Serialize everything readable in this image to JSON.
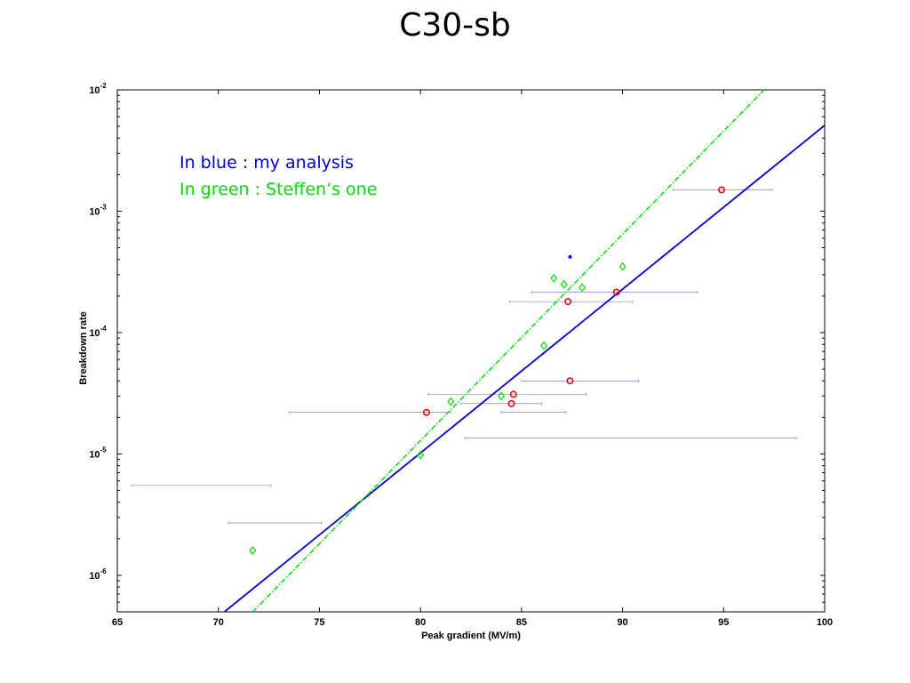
{
  "title": "C30-sb",
  "chart_data": {
    "type": "scatter",
    "xlabel": "Peak gradient (MV/m)",
    "ylabel": "Breakdown rate",
    "xlim": [
      65,
      100
    ],
    "ylim": [
      5e-07,
      0.01
    ],
    "yscale": "log",
    "x_ticks": [
      "65",
      "70",
      "75",
      "80",
      "85",
      "90",
      "95",
      "100"
    ],
    "x_tick_values": [
      65,
      70,
      75,
      80,
      85,
      90,
      95,
      100
    ],
    "y_ticks": [
      {
        "base": "10",
        "exp": "-6",
        "value": 1e-06
      },
      {
        "base": "10",
        "exp": "-5",
        "value": 1e-05
      },
      {
        "base": "10",
        "exp": "-4",
        "value": 0.0001
      },
      {
        "base": "10",
        "exp": "-3",
        "value": 0.001
      },
      {
        "base": "10",
        "exp": "-2",
        "value": 0.01
      }
    ],
    "grid": false,
    "annotations": [
      {
        "text": "In blue : my analysis",
        "color": "#0000cc"
      },
      {
        "text": "In green : Steffen’s one",
        "color": "#00dd00"
      }
    ],
    "series": [
      {
        "marker": "circle",
        "color": "#dd0000",
        "points": [
          {
            "x": 80.3,
            "y": 2.2e-05
          },
          {
            "x": 84.5,
            "y": 2.6e-05
          },
          {
            "x": 84.6,
            "y": 3.1e-05
          },
          {
            "x": 87.3,
            "y": 0.00018
          },
          {
            "x": 87.4,
            "y": 4e-05
          },
          {
            "x": 89.7,
            "y": 0.000215
          },
          {
            "x": 94.9,
            "y": 0.0015
          }
        ]
      },
      {
        "marker": "diamond",
        "color": "#22dd22",
        "points": [
          {
            "x": 71.7,
            "y": 1.6e-06
          },
          {
            "x": 80.0,
            "y": 9.8e-06
          },
          {
            "x": 81.5,
            "y": 2.7e-05
          },
          {
            "x": 84.0,
            "y": 3e-05
          },
          {
            "x": 86.1,
            "y": 7.8e-05
          },
          {
            "x": 86.6,
            "y": 0.00028
          },
          {
            "x": 87.1,
            "y": 0.00025
          },
          {
            "x": 88.0,
            "y": 0.000235
          },
          {
            "x": 90.0,
            "y": 0.00035
          }
        ]
      },
      {
        "marker": "dot",
        "color": "#0000dd",
        "points": [
          {
            "x": 87.4,
            "y": 0.00042
          }
        ]
      },
      {
        "marker": "errorbar",
        "color": "#6a6ad8",
        "bars": [
          {
            "xmin": 65.7,
            "xmax": 72.6,
            "y": 5.5e-06
          },
          {
            "xmin": 70.5,
            "xmax": 75.1,
            "y": 2.7e-06
          },
          {
            "xmin": 73.5,
            "xmax": 81.5,
            "y": 2.2e-05
          },
          {
            "xmin": 80.4,
            "xmax": 88.2,
            "y": 3.1e-05
          },
          {
            "xmin": 82.0,
            "xmax": 86.0,
            "y": 2.6e-05
          },
          {
            "xmin": 84.0,
            "xmax": 87.2,
            "y": 2.2e-05
          },
          {
            "xmin": 82.2,
            "xmax": 98.6,
            "y": 1.35e-05
          },
          {
            "xmin": 85.0,
            "xmax": 90.8,
            "y": 4e-05
          },
          {
            "xmin": 85.5,
            "xmax": 93.7,
            "y": 0.000215
          },
          {
            "xmin": 84.4,
            "xmax": 90.5,
            "y": 0.00018
          },
          {
            "xmin": 92.5,
            "xmax": 97.4,
            "y": 0.0015
          }
        ]
      },
      {
        "type": "line",
        "style": "solid",
        "color": "#0000cc",
        "points": [
          {
            "x": 70.3,
            "y": 5e-07
          },
          {
            "x": 100,
            "y": 0.0051
          }
        ]
      },
      {
        "type": "line",
        "style": "dash-dot",
        "color": "#00dd00",
        "points": [
          {
            "x": 71.7,
            "y": 5e-07
          },
          {
            "x": 97.0,
            "y": 0.01
          }
        ]
      }
    ]
  }
}
